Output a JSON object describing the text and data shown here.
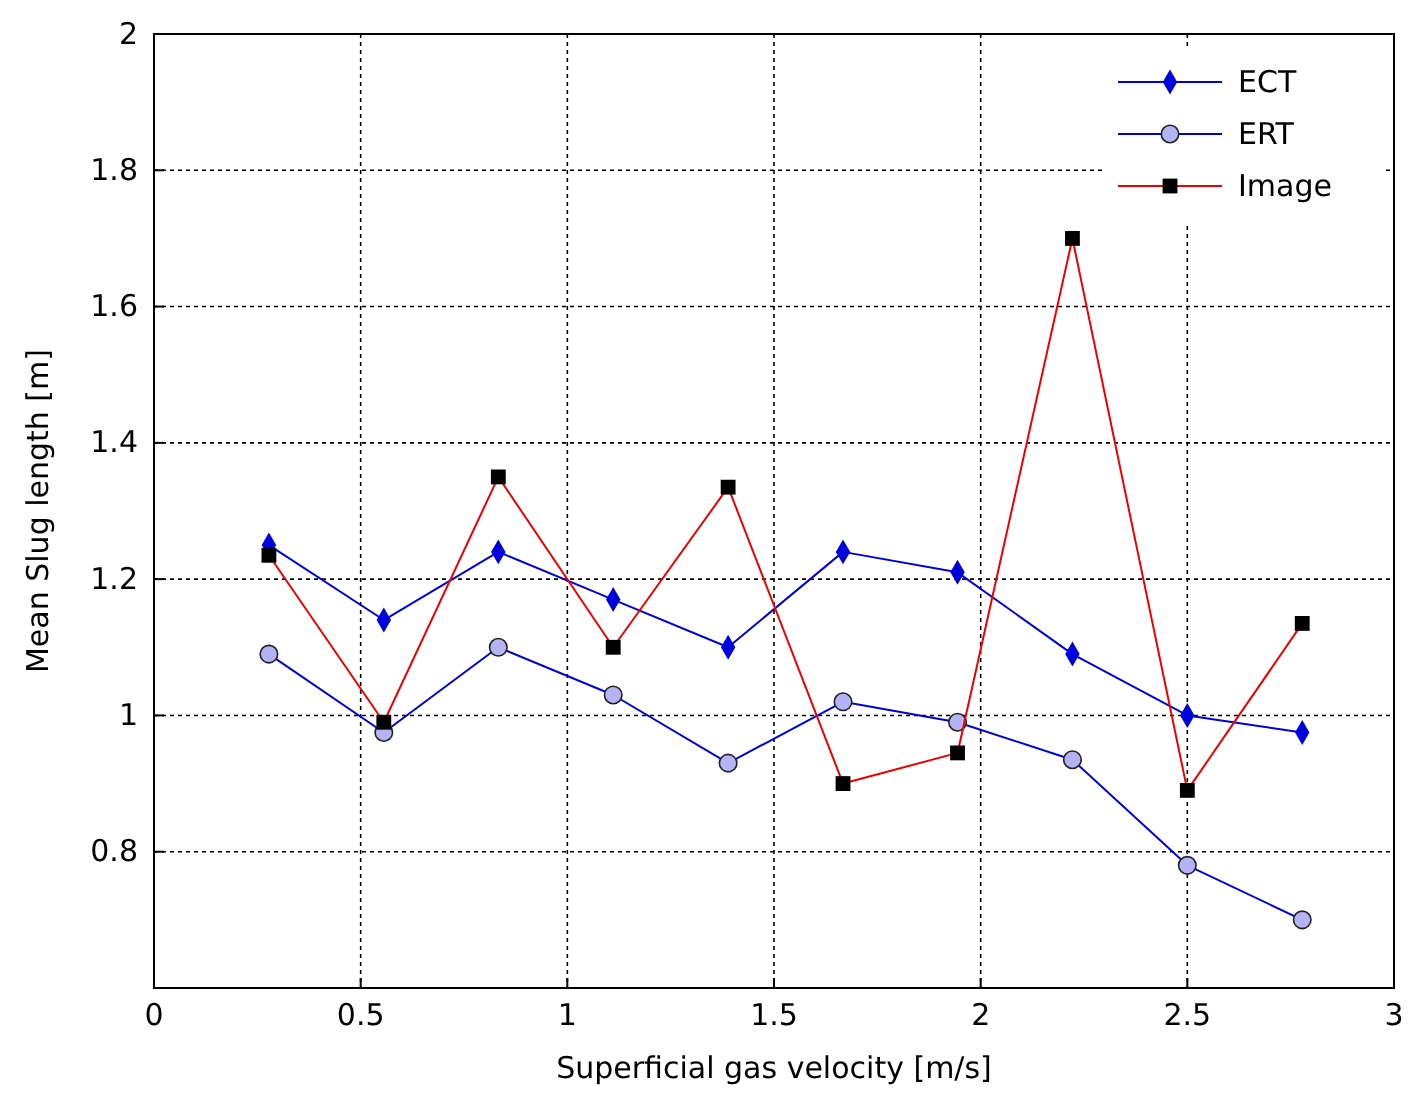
{
  "chart_data": {
    "type": "line",
    "xlabel": "Superficial gas velocity [m/s]",
    "ylabel": "Mean Slug length [m]",
    "x": [
      0.278,
      0.556,
      0.833,
      1.111,
      1.389,
      1.667,
      1.944,
      2.222,
      2.5,
      2.778
    ],
    "series": [
      {
        "name": "ECT",
        "color": "#0000dd",
        "marker": "diamond",
        "values": [
          1.25,
          1.14,
          1.24,
          1.17,
          1.1,
          1.24,
          1.21,
          1.09,
          1.0,
          0.975
        ]
      },
      {
        "name": "ERT",
        "color": "#0000dd",
        "marker": "circle",
        "values": [
          1.09,
          0.975,
          1.1,
          1.03,
          0.93,
          1.02,
          0.99,
          0.935,
          0.78,
          0.7
        ]
      },
      {
        "name": "Image",
        "color": "#ee0000",
        "marker": "square",
        "values": [
          1.235,
          0.99,
          1.35,
          1.1,
          1.335,
          0.9,
          0.945,
          1.7,
          0.89,
          1.135
        ]
      }
    ],
    "xlim": [
      0,
      3
    ],
    "xticks": [
      0,
      0.5,
      1,
      1.5,
      2,
      2.5,
      3
    ],
    "ylim": [
      0.6,
      2
    ],
    "yticks": [
      {
        "value": 0.6,
        "label": null
      },
      0.8,
      1,
      {
        "value": 1.2,
        "label": "1.2"
      },
      1.4,
      1.6,
      1.8,
      2
    ],
    "grid": true,
    "legend": "top right",
    "line_style": "solid"
  }
}
